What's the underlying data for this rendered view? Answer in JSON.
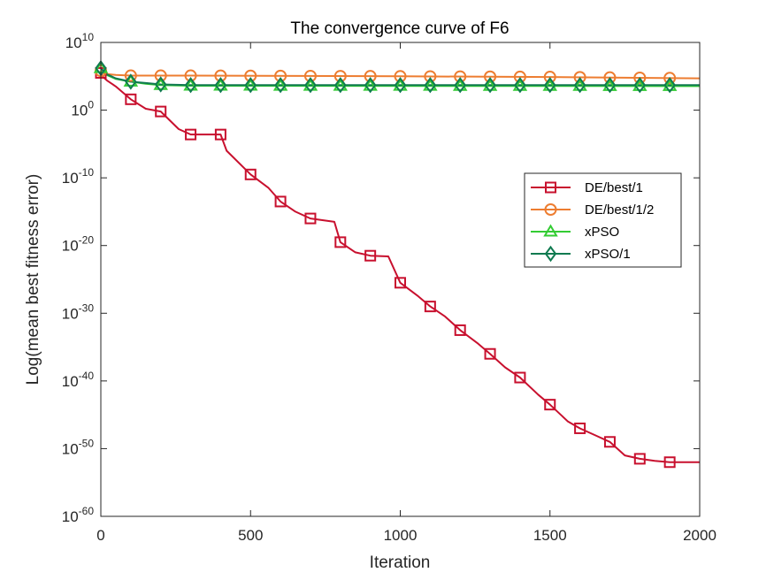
{
  "chart_data": {
    "type": "line",
    "title": "The convergence curve of F6",
    "xlabel": "Iteration",
    "ylabel": "Log(mean best fitness error)",
    "xlim": [
      0,
      2000
    ],
    "ylim_exp": [
      -60,
      10
    ],
    "yscale": "log",
    "grid": false,
    "legend_position": "right-center",
    "x_ticks": [
      "0",
      "500",
      "1000",
      "1500",
      "2000"
    ],
    "y_ticks": [
      {
        "base": "10",
        "exp": "10"
      },
      {
        "base": "10",
        "exp": "0"
      },
      {
        "base": "10",
        "exp": "-10"
      },
      {
        "base": "10",
        "exp": "-20"
      },
      {
        "base": "10",
        "exp": "-30"
      },
      {
        "base": "10",
        "exp": "-40"
      },
      {
        "base": "10",
        "exp": "-50"
      },
      {
        "base": "10",
        "exp": "-60"
      }
    ],
    "series": [
      {
        "name": "DE/best/1",
        "color": "#c8102e",
        "marker": "square",
        "log10_points": [
          [
            0,
            5.5
          ],
          [
            5,
            5.0
          ],
          [
            20,
            4.4
          ],
          [
            50,
            3.5
          ],
          [
            100,
            1.6
          ],
          [
            150,
            0.2
          ],
          [
            200,
            -0.2
          ],
          [
            230,
            -1.5
          ],
          [
            260,
            -2.8
          ],
          [
            300,
            -3.6
          ],
          [
            400,
            -3.6
          ],
          [
            420,
            -6.0
          ],
          [
            500,
            -9.5
          ],
          [
            560,
            -11.5
          ],
          [
            600,
            -13.5
          ],
          [
            650,
            -15.0
          ],
          [
            700,
            -16.0
          ],
          [
            780,
            -16.5
          ],
          [
            800,
            -19.5
          ],
          [
            850,
            -21.0
          ],
          [
            900,
            -21.5
          ],
          [
            960,
            -21.6
          ],
          [
            1000,
            -25.5
          ],
          [
            1060,
            -27.5
          ],
          [
            1100,
            -29.0
          ],
          [
            1150,
            -30.5
          ],
          [
            1200,
            -32.5
          ],
          [
            1260,
            -34.5
          ],
          [
            1300,
            -36.0
          ],
          [
            1350,
            -38.0
          ],
          [
            1400,
            -39.5
          ],
          [
            1460,
            -42.0
          ],
          [
            1500,
            -43.5
          ],
          [
            1560,
            -46.0
          ],
          [
            1600,
            -47.0
          ],
          [
            1650,
            -48.0
          ],
          [
            1700,
            -49.0
          ],
          [
            1750,
            -51.0
          ],
          [
            1800,
            -51.5
          ],
          [
            1850,
            -51.8
          ],
          [
            1900,
            -52.0
          ],
          [
            2000,
            -52.0
          ]
        ],
        "marker_x": [
          0,
          100,
          200,
          300,
          400,
          500,
          600,
          700,
          800,
          900,
          1000,
          1100,
          1200,
          1300,
          1400,
          1500,
          1600,
          1700,
          1800,
          1900
        ]
      },
      {
        "name": "DE/best/1/2",
        "color": "#ed7d31",
        "marker": "circle",
        "log10_points": [
          [
            0,
            5.8
          ],
          [
            10,
            5.4
          ],
          [
            50,
            5.2
          ],
          [
            100,
            5.1
          ],
          [
            300,
            5.1
          ],
          [
            1000,
            5.0
          ],
          [
            1500,
            4.9
          ],
          [
            2000,
            4.7
          ]
        ],
        "marker_x": [
          0,
          100,
          200,
          300,
          400,
          500,
          600,
          700,
          800,
          900,
          1000,
          1100,
          1200,
          1300,
          1400,
          1500,
          1600,
          1700,
          1800,
          1900
        ]
      },
      {
        "name": "xPSO",
        "color": "#33cc33",
        "marker": "triangle",
        "log10_points": [
          [
            0,
            6.2
          ],
          [
            20,
            5.2
          ],
          [
            50,
            4.6
          ],
          [
            100,
            4.2
          ],
          [
            150,
            3.9
          ],
          [
            200,
            3.7
          ],
          [
            300,
            3.6
          ],
          [
            2000,
            3.55
          ]
        ],
        "marker_x": [
          0,
          100,
          200,
          300,
          400,
          500,
          600,
          700,
          800,
          900,
          1000,
          1100,
          1200,
          1300,
          1400,
          1500,
          1600,
          1700,
          1800,
          1900
        ]
      },
      {
        "name": "xPSO/1",
        "color": "#107a50",
        "marker": "diamond",
        "log10_points": [
          [
            0,
            6.2
          ],
          [
            20,
            5.3
          ],
          [
            50,
            4.7
          ],
          [
            100,
            4.2
          ],
          [
            150,
            4.0
          ],
          [
            200,
            3.8
          ],
          [
            300,
            3.7
          ],
          [
            2000,
            3.7
          ]
        ],
        "marker_x": [
          0,
          100,
          200,
          300,
          400,
          500,
          600,
          700,
          800,
          900,
          1000,
          1100,
          1200,
          1300,
          1400,
          1500,
          1600,
          1700,
          1800,
          1900
        ]
      }
    ]
  }
}
